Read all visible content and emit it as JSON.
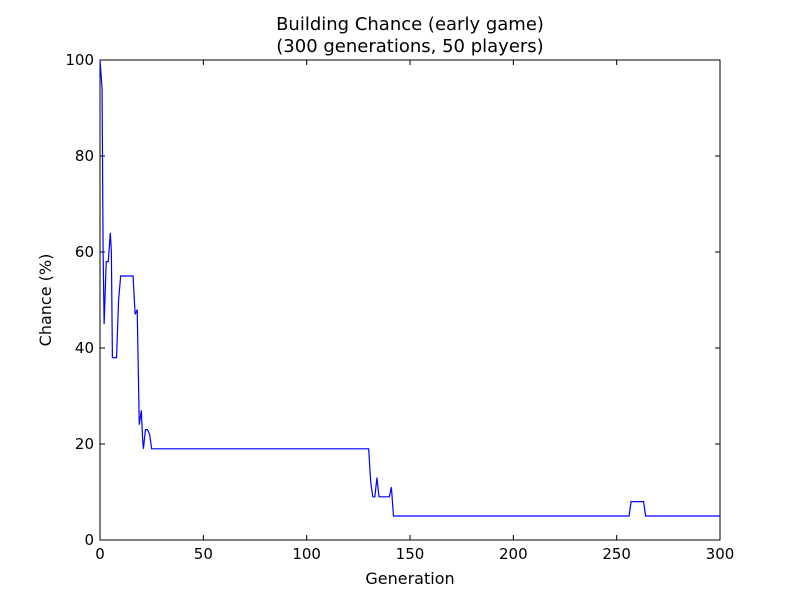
{
  "chart_data": {
    "type": "line",
    "title_line1": "Building Chance (early game)",
    "title_line2": "(300 generations, 50 players)",
    "xlabel": "Generation",
    "ylabel": "Chance (%)",
    "xlim": [
      0,
      300
    ],
    "ylim": [
      0,
      100
    ],
    "xticks": [
      0,
      50,
      100,
      150,
      200,
      250,
      300
    ],
    "yticks": [
      0,
      20,
      40,
      60,
      80,
      100
    ],
    "grid": false,
    "series": [
      {
        "color": "#0000ff",
        "x": [
          0,
          1,
          1.5,
          2,
          3,
          4,
          5,
          5.5,
          6,
          7,
          8,
          9,
          10,
          12,
          14,
          16,
          17,
          18,
          19,
          20,
          20.5,
          21,
          22,
          23,
          24,
          25,
          50,
          100,
          129,
          130,
          131,
          132,
          133,
          134,
          135,
          140,
          141,
          142,
          143,
          200,
          255,
          256,
          257,
          260,
          262,
          263,
          264,
          300
        ],
        "y": [
          100,
          94,
          60,
          45,
          58,
          58,
          64,
          60,
          38,
          38,
          38,
          50,
          55,
          55,
          55,
          55,
          47,
          48,
          24,
          27,
          22,
          19,
          23,
          23,
          22,
          19,
          19,
          19,
          19,
          19,
          12,
          9,
          9,
          13,
          9,
          9,
          11,
          5,
          5,
          5,
          5,
          5,
          8,
          8,
          8,
          8,
          5,
          5
        ]
      }
    ]
  }
}
